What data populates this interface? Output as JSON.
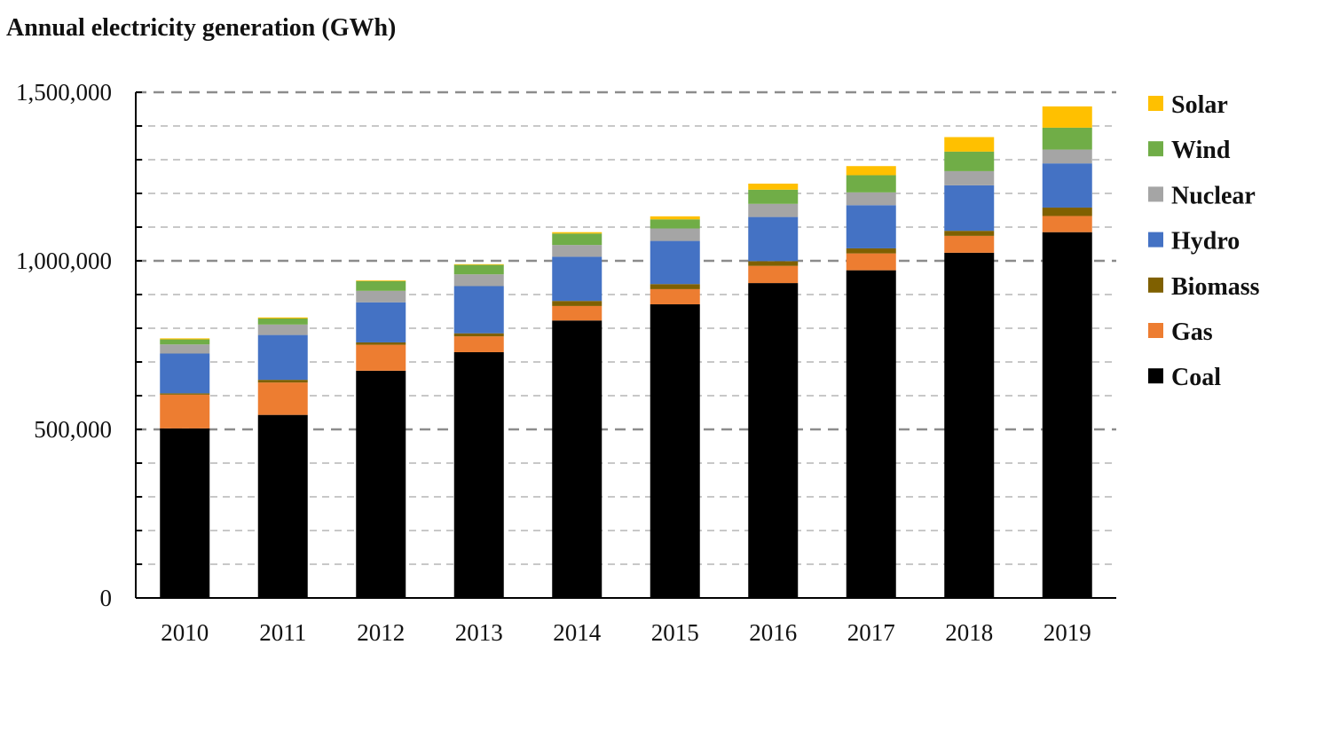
{
  "chart_data": {
    "type": "bar",
    "stacked": true,
    "title": "Annual electricity generation (GWh)",
    "xlabel": "",
    "ylabel": "",
    "ylim": [
      0,
      1500000
    ],
    "yticks": [
      0,
      500000,
      1000000,
      1500000
    ],
    "ytick_labels": [
      "0",
      "500,000",
      "1,000,000",
      "1,500,000"
    ],
    "grid": true,
    "legend_position": "right",
    "categories": [
      "2010",
      "2011",
      "2012",
      "2013",
      "2014",
      "2015",
      "2016",
      "2017",
      "2018",
      "2019"
    ],
    "series": [
      {
        "name": "Coal",
        "color": "#000000",
        "values": [
          503000,
          543000,
          674000,
          729000,
          823000,
          871000,
          934000,
          972000,
          1024000,
          1085000
        ]
      },
      {
        "name": "Gas",
        "color": "#ED7D31",
        "values": [
          100000,
          96000,
          77000,
          47000,
          43000,
          45000,
          51000,
          50000,
          50000,
          48000
        ]
      },
      {
        "name": "Biomass",
        "color": "#7F6000",
        "values": [
          4000,
          8000,
          7000,
          9000,
          15000,
          15000,
          14000,
          15000,
          15000,
          25000
        ]
      },
      {
        "name": "Hydro",
        "color": "#4472C4",
        "values": [
          118000,
          133000,
          119000,
          140000,
          131000,
          128000,
          131000,
          128000,
          135000,
          131000
        ]
      },
      {
        "name": "Nuclear",
        "color": "#A5A5A5",
        "values": [
          27000,
          31000,
          34000,
          35000,
          35000,
          37000,
          39000,
          38000,
          42000,
          41000
        ]
      },
      {
        "name": "Wind",
        "color": "#70AD47",
        "values": [
          15000,
          18000,
          29000,
          28000,
          34000,
          27000,
          42000,
          51000,
          58000,
          65000
        ]
      },
      {
        "name": "Solar",
        "color": "#FFC000",
        "values": [
          3000,
          3000,
          2000,
          2000,
          4000,
          9000,
          18000,
          27000,
          43000,
          63000
        ]
      }
    ]
  }
}
